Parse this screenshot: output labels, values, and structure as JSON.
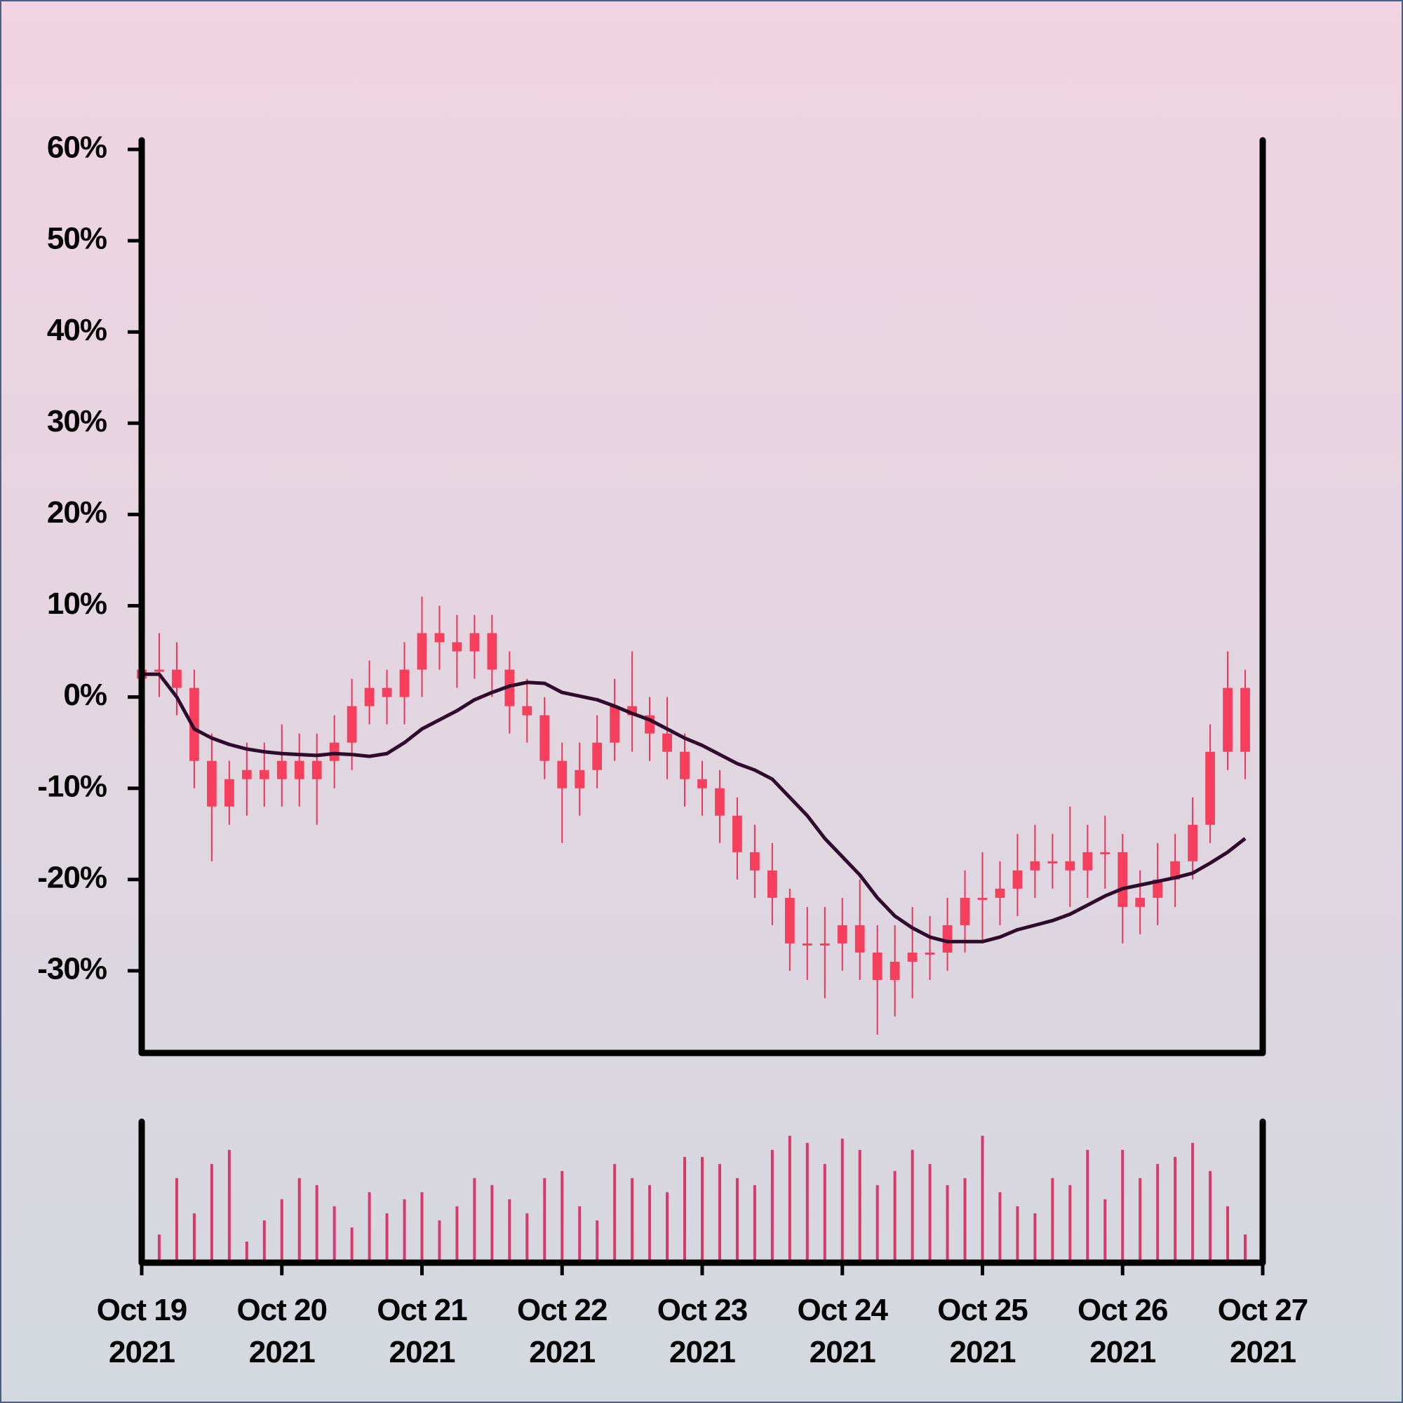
{
  "chart_data": {
    "type": "candlestick",
    "x": [
      "2021-10-19T00:00",
      "2021-10-19T03:00",
      "2021-10-19T06:00",
      "2021-10-19T09:00",
      "2021-10-19T12:00",
      "2021-10-19T15:00",
      "2021-10-19T18:00",
      "2021-10-19T21:00",
      "2021-10-20T00:00",
      "2021-10-20T03:00",
      "2021-10-20T06:00",
      "2021-10-20T09:00",
      "2021-10-20T12:00",
      "2021-10-20T15:00",
      "2021-10-20T18:00",
      "2021-10-20T21:00",
      "2021-10-21T00:00",
      "2021-10-21T03:00",
      "2021-10-21T06:00",
      "2021-10-21T09:00",
      "2021-10-21T12:00",
      "2021-10-21T15:00",
      "2021-10-21T18:00",
      "2021-10-21T21:00",
      "2021-10-22T00:00",
      "2021-10-22T03:00",
      "2021-10-22T06:00",
      "2021-10-22T09:00",
      "2021-10-22T12:00",
      "2021-10-22T15:00",
      "2021-10-22T18:00",
      "2021-10-22T21:00",
      "2021-10-23T00:00",
      "2021-10-23T03:00",
      "2021-10-23T06:00",
      "2021-10-23T09:00",
      "2021-10-23T12:00",
      "2021-10-23T15:00",
      "2021-10-23T18:00",
      "2021-10-23T21:00",
      "2021-10-24T00:00",
      "2021-10-24T03:00",
      "2021-10-24T06:00",
      "2021-10-24T09:00",
      "2021-10-24T12:00",
      "2021-10-24T15:00",
      "2021-10-24T18:00",
      "2021-10-24T21:00",
      "2021-10-25T00:00",
      "2021-10-25T03:00",
      "2021-10-25T06:00",
      "2021-10-25T09:00",
      "2021-10-25T12:00",
      "2021-10-25T15:00",
      "2021-10-25T18:00",
      "2021-10-25T21:00",
      "2021-10-26T00:00",
      "2021-10-26T03:00",
      "2021-10-26T06:00",
      "2021-10-26T09:00",
      "2021-10-26T12:00",
      "2021-10-26T15:00",
      "2021-10-26T18:00",
      "2021-10-26T21:00"
    ],
    "open": [
      2,
      3,
      3,
      1,
      -7,
      -12,
      -9,
      -8,
      -9,
      -7,
      -9,
      -7,
      -5,
      -1,
      1,
      0,
      3,
      7,
      6,
      5,
      7,
      3,
      -1,
      -2,
      -7,
      -10,
      -8,
      -5,
      -1,
      -2,
      -4,
      -6,
      -9,
      -10,
      -13,
      -17,
      -19,
      -22,
      -27,
      -27,
      -27,
      -25,
      -28,
      -31,
      -29,
      -28,
      -28,
      -25,
      -22,
      -22,
      -21,
      -19,
      -18,
      -18,
      -19,
      -17,
      -17,
      -23,
      -22,
      -20,
      -18,
      -14,
      -6,
      1
    ],
    "high": [
      6,
      7,
      6,
      3,
      -4,
      -7,
      -5,
      -5,
      -3,
      -4,
      -4,
      -2,
      2,
      4,
      3,
      6,
      11,
      10,
      9,
      9,
      9,
      5,
      2,
      0,
      -5,
      -5,
      -2,
      2,
      5,
      0,
      0,
      -4,
      -7,
      -8,
      -11,
      -14,
      -16,
      -21,
      -23,
      -23,
      -22,
      -20,
      -25,
      -25,
      -23,
      -24,
      -22,
      -19,
      -17,
      -18,
      -15,
      -14,
      -15,
      -12,
      -14,
      -13,
      -15,
      -19,
      -16,
      -15,
      -11,
      -3,
      5,
      3
    ],
    "low": [
      -1,
      0,
      -2,
      -10,
      -18,
      -14,
      -13,
      -12,
      -12,
      -12,
      -14,
      -10,
      -8,
      -3,
      -3,
      -3,
      0,
      3,
      1,
      2,
      0,
      -4,
      -5,
      -9,
      -16,
      -13,
      -10,
      -7,
      -6,
      -7,
      -9,
      -12,
      -13,
      -16,
      -20,
      -22,
      -25,
      -30,
      -31,
      -33,
      -30,
      -31,
      -37,
      -35,
      -33,
      -31,
      -30,
      -28,
      -27,
      -25,
      -24,
      -22,
      -21,
      -23,
      -22,
      -21,
      -27,
      -26,
      -25,
      -23,
      -20,
      -16,
      -8,
      -9
    ],
    "close": [
      3,
      3,
      1,
      -7,
      -12,
      -9,
      -8,
      -9,
      -7,
      -9,
      -7,
      -5,
      -1,
      1,
      0,
      3,
      7,
      6,
      5,
      7,
      3,
      -1,
      -2,
      -7,
      -10,
      -8,
      -5,
      -1,
      -2,
      -4,
      -6,
      -9,
      -10,
      -13,
      -17,
      -19,
      -22,
      -27,
      -27,
      -27,
      -25,
      -28,
      -31,
      -29,
      -28,
      -28,
      -25,
      -22,
      -22,
      -21,
      -19,
      -18,
      -18,
      -19,
      -17,
      -17,
      -23,
      -22,
      -20,
      -18,
      -14,
      -6,
      1,
      -6
    ],
    "color": "#f53f5c",
    "wick_color": "#e8365e",
    "ma": {
      "color": "#2e0b2c",
      "values": [
        2.5,
        2.5,
        0,
        -3.5,
        -4.5,
        -5.2,
        -5.7,
        -6,
        -6.2,
        -6.3,
        -6.4,
        -6.2,
        -6.3,
        -6.5,
        -6.2,
        -5,
        -3.5,
        -2.5,
        -1.5,
        -0.3,
        0.5,
        1.2,
        1.6,
        1.5,
        0.5,
        0.1,
        -0.3,
        -1,
        -1.8,
        -2.5,
        -3.5,
        -4.5,
        -5.3,
        -6.3,
        -7.3,
        -8,
        -9,
        -11,
        -13,
        -15.5,
        -17.5,
        -19.5,
        -22,
        -24,
        -25.3,
        -26.3,
        -26.8,
        -26.8,
        -26.8,
        -26.3,
        -25.5,
        -25,
        -24.5,
        -23.8,
        -22.8,
        -21.8,
        -21,
        -20.6,
        -20.2,
        -19.8,
        -19.3,
        -18.2,
        -17,
        -15.5
      ]
    },
    "volume": {
      "color": "#d8386c",
      "ylim": [
        0,
        100
      ],
      "values": [
        55,
        20,
        60,
        35,
        70,
        80,
        15,
        30,
        45,
        60,
        55,
        40,
        25,
        50,
        35,
        45,
        50,
        30,
        40,
        60,
        55,
        45,
        35,
        60,
        65,
        40,
        30,
        70,
        60,
        55,
        50,
        75,
        75,
        70,
        60,
        55,
        80,
        90,
        85,
        70,
        88,
        80,
        55,
        65,
        80,
        70,
        55,
        60,
        90,
        50,
        40,
        35,
        60,
        55,
        80,
        45,
        80,
        60,
        70,
        75,
        85,
        65,
        40,
        20
      ]
    },
    "xlim": [
      "2021-10-19T00:00",
      "2021-10-27T00:00"
    ],
    "xticks": [
      {
        "value": "2021-10-19T00:00",
        "label": "Oct 19 2021"
      },
      {
        "value": "2021-10-20T00:00",
        "label": "Oct 20 2021"
      },
      {
        "value": "2021-10-21T00:00",
        "label": "Oct 21 2021"
      },
      {
        "value": "2021-10-22T00:00",
        "label": "Oct 22 2021"
      },
      {
        "value": "2021-10-23T00:00",
        "label": "Oct 23 2021"
      },
      {
        "value": "2021-10-24T00:00",
        "label": "Oct 24 2021"
      },
      {
        "value": "2021-10-25T00:00",
        "label": "Oct 25 2021"
      },
      {
        "value": "2021-10-26T00:00",
        "label": "Oct 26 2021"
      },
      {
        "value": "2021-10-27T00:00",
        "label": "Oct 27 2021"
      }
    ],
    "ylim": [
      -39,
      61
    ],
    "yticks": [
      {
        "value": -30,
        "label": "-30%"
      },
      {
        "value": -20,
        "label": "-20%"
      },
      {
        "value": -10,
        "label": "-10%"
      },
      {
        "value": 0,
        "label": "0%"
      },
      {
        "value": 10,
        "label": "10%"
      },
      {
        "value": 20,
        "label": "20%"
      },
      {
        "value": 30,
        "label": "30%"
      },
      {
        "value": 40,
        "label": "40%"
      },
      {
        "value": 50,
        "label": "50%"
      },
      {
        "value": 60,
        "label": "60%"
      }
    ]
  }
}
